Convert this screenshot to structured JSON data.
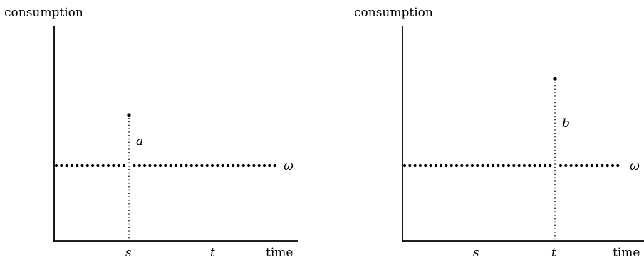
{
  "panels": [
    {
      "name": "left",
      "y_axis_label": "consumption",
      "x_axis_label": "time",
      "tick_labels": [
        "s",
        "t"
      ],
      "spike_at": "s",
      "spike_label": "a",
      "baseline_label": "ω"
    },
    {
      "name": "right",
      "y_axis_label": "consumption",
      "x_axis_label": "time",
      "tick_labels": [
        "s",
        "t"
      ],
      "spike_at": "t",
      "spike_label": "b",
      "baseline_label": "ω"
    }
  ],
  "colors": {
    "ink": "#000000",
    "background": "#ffffff"
  }
}
